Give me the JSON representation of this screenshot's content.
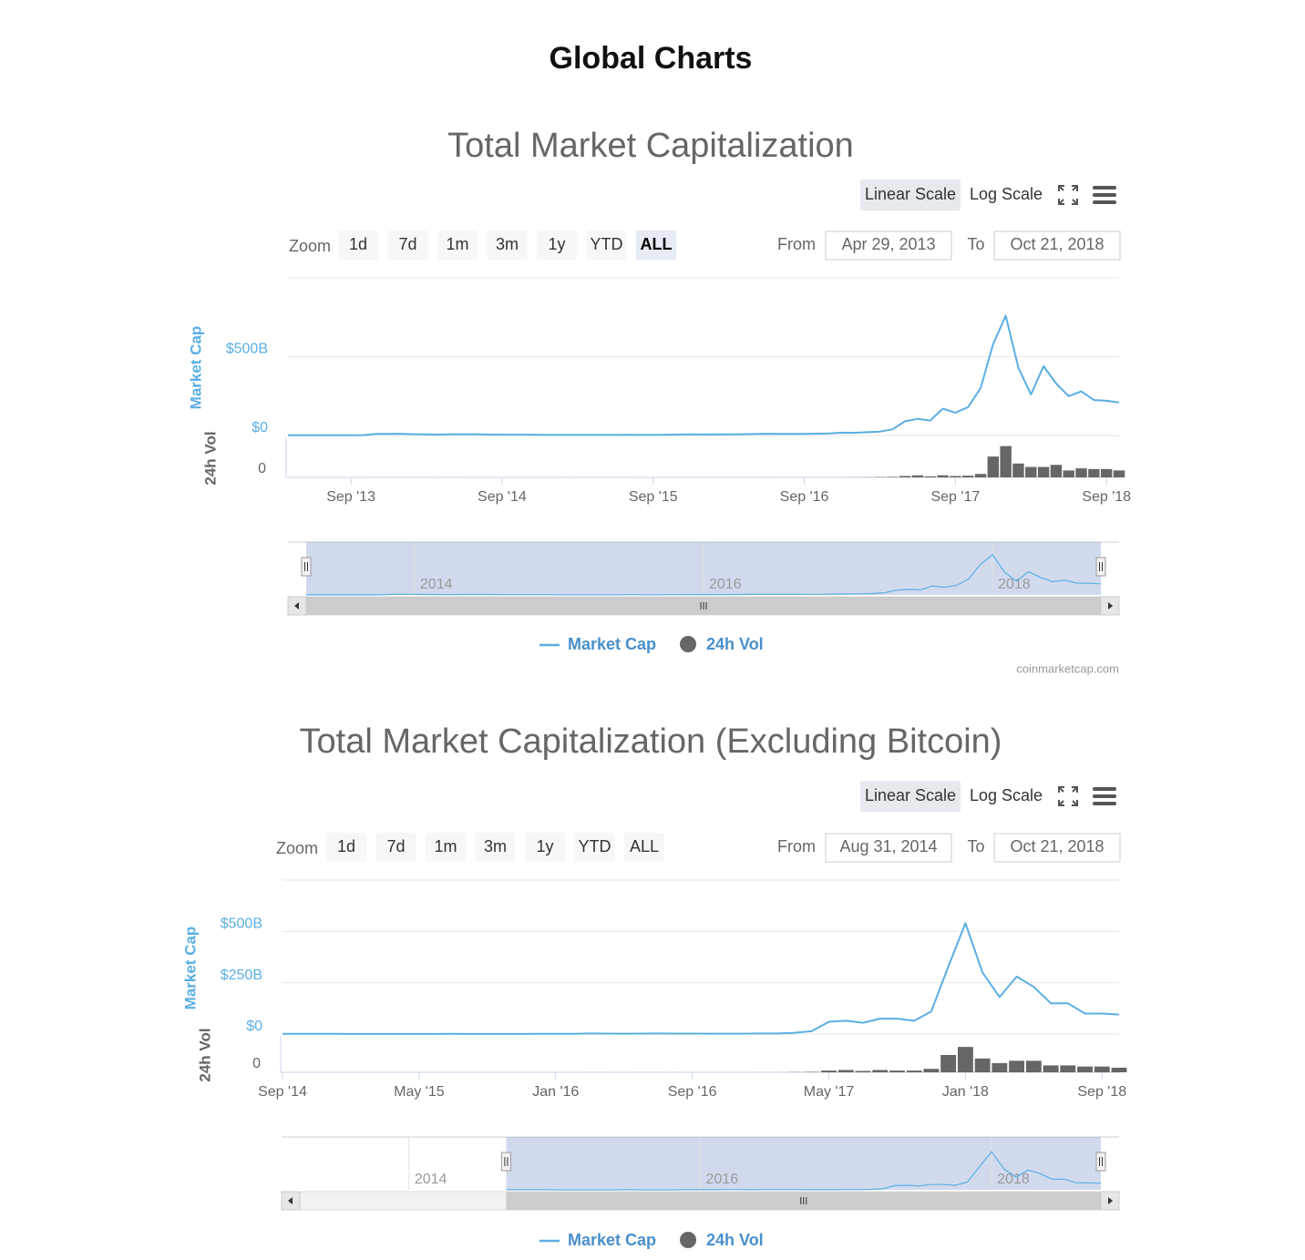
{
  "header": {
    "title": "Global Charts"
  },
  "chart_data": [
    {
      "type": "line",
      "title": "Total Market Capitalization",
      "scale_buttons": [
        "Linear Scale",
        "Log Scale"
      ],
      "active_scale": "Linear Scale",
      "zoom_label": "Zoom",
      "zoom_buttons": [
        "1d",
        "7d",
        "1m",
        "3m",
        "1y",
        "YTD",
        "ALL"
      ],
      "active_zoom": "ALL",
      "from_label": "From",
      "from": "Apr 29, 2013",
      "to_label": "To",
      "to": "Oct 21, 2018",
      "ylabel": "Market Cap",
      "y2label": "24h Vol",
      "x": [
        "2013-04",
        "2013-05",
        "2013-06",
        "2013-07",
        "2013-08",
        "2013-09",
        "2013-10",
        "2013-11",
        "2013-12",
        "2014-01",
        "2014-02",
        "2014-03",
        "2014-04",
        "2014-05",
        "2014-06",
        "2014-07",
        "2014-08",
        "2014-09",
        "2014-10",
        "2014-11",
        "2014-12",
        "2015-01",
        "2015-02",
        "2015-03",
        "2015-04",
        "2015-05",
        "2015-06",
        "2015-07",
        "2015-08",
        "2015-09",
        "2015-10",
        "2015-11",
        "2015-12",
        "2016-01",
        "2016-02",
        "2016-03",
        "2016-04",
        "2016-05",
        "2016-06",
        "2016-07",
        "2016-08",
        "2016-09",
        "2016-10",
        "2016-11",
        "2016-12",
        "2017-01",
        "2017-02",
        "2017-03",
        "2017-04",
        "2017-05",
        "2017-06",
        "2017-07",
        "2017-08",
        "2017-09",
        "2017-10",
        "2017-11",
        "2017-12",
        "2018-01",
        "2018-02",
        "2018-03",
        "2018-04",
        "2018-05",
        "2018-06",
        "2018-07",
        "2018-08",
        "2018-09",
        "2018-10"
      ],
      "xlim": [
        "2013-04",
        "2018-10"
      ],
      "xticks": [
        {
          "value": "2013-09",
          "label": "Sep '13"
        },
        {
          "value": "2014-09",
          "label": "Sep '14"
        },
        {
          "value": "2015-09",
          "label": "Sep '15"
        },
        {
          "value": "2016-09",
          "label": "Sep '16"
        },
        {
          "value": "2017-09",
          "label": "Sep '17"
        },
        {
          "value": "2018-09",
          "label": "Sep '18"
        }
      ],
      "ylim": [
        0,
        1000
      ],
      "yticks": [
        {
          "value": 0,
          "label": "$0"
        },
        {
          "value": 500,
          "label": "$500B"
        }
      ],
      "y2lim": [
        0,
        55
      ],
      "y2ticks": [
        0
      ],
      "grid": true,
      "series": [
        {
          "name": "Market Cap",
          "color": "#5aaee3",
          "values": [
            1.5,
            1.4,
            1.2,
            1.1,
            1.4,
            1.6,
            2.2,
            10,
            10,
            11,
            8,
            7,
            6,
            8,
            8,
            8,
            6,
            5,
            5,
            5,
            4.5,
            3.5,
            3.5,
            3.5,
            3.3,
            3.4,
            3.7,
            4.4,
            3.6,
            3.6,
            4.9,
            5.5,
            7,
            6.5,
            7.5,
            7.6,
            8,
            9.5,
            11,
            10.5,
            10,
            10.5,
            11.5,
            12.5,
            17.7,
            17.5,
            21,
            25,
            39,
            90,
            105,
            95,
            170,
            145,
            180,
            300,
            580,
            760,
            430,
            260,
            440,
            330,
            250,
            280,
            225,
            220,
            210
          ]
        },
        {
          "name": "24h Vol",
          "color": "#666666",
          "axis": "y2",
          "values": [
            0.01,
            0.01,
            0.01,
            0.01,
            0.01,
            0.01,
            0.02,
            0.1,
            0.1,
            0.06,
            0.05,
            0.04,
            0.03,
            0.03,
            0.03,
            0.02,
            0.02,
            0.02,
            0.02,
            0.02,
            0.02,
            0.03,
            0.03,
            0.03,
            0.03,
            0.03,
            0.03,
            0.03,
            0.03,
            0.03,
            0.06,
            0.08,
            0.05,
            0.06,
            0.06,
            0.06,
            0.06,
            0.07,
            0.15,
            0.1,
            0.08,
            0.08,
            0.08,
            0.1,
            0.12,
            0.2,
            0.3,
            0.5,
            0.8,
            2,
            3,
            1.5,
            3,
            2,
            2.5,
            5,
            30,
            45,
            20,
            15,
            15,
            18,
            10,
            13,
            12,
            12,
            10
          ]
        }
      ],
      "navigator": {
        "xlim": [
          "2013-04",
          "2018-10"
        ],
        "xticks": [
          {
            "value": "2014-01",
            "label": "2014"
          },
          {
            "value": "2016-01",
            "label": "2016"
          },
          {
            "value": "2018-01",
            "label": "2018"
          }
        ]
      },
      "credit": "coinmarketcap.com"
    },
    {
      "type": "line",
      "title": "Total Market Capitalization (Excluding Bitcoin)",
      "scale_buttons": [
        "Linear Scale",
        "Log Scale"
      ],
      "active_scale": "Linear Scale",
      "zoom_label": "Zoom",
      "zoom_buttons": [
        "1d",
        "7d",
        "1m",
        "3m",
        "1y",
        "YTD",
        "ALL"
      ],
      "from_label": "From",
      "from": "Aug 31, 2014",
      "to_label": "To",
      "to": "Oct 21, 2018",
      "ylabel": "Market Cap",
      "y2label": "24h Vol",
      "x": [
        "2014-09",
        "2014-10",
        "2014-11",
        "2014-12",
        "2015-01",
        "2015-02",
        "2015-03",
        "2015-04",
        "2015-05",
        "2015-06",
        "2015-07",
        "2015-08",
        "2015-09",
        "2015-10",
        "2015-11",
        "2015-12",
        "2016-01",
        "2016-02",
        "2016-03",
        "2016-04",
        "2016-05",
        "2016-06",
        "2016-07",
        "2016-08",
        "2016-09",
        "2016-10",
        "2016-11",
        "2016-12",
        "2017-01",
        "2017-02",
        "2017-03",
        "2017-04",
        "2017-05",
        "2017-06",
        "2017-07",
        "2017-08",
        "2017-09",
        "2017-10",
        "2017-11",
        "2017-12",
        "2018-01",
        "2018-02",
        "2018-03",
        "2018-04",
        "2018-05",
        "2018-06",
        "2018-07",
        "2018-08",
        "2018-09",
        "2018-10"
      ],
      "xlim": [
        "2014-09",
        "2018-10"
      ],
      "xticks": [
        {
          "value": "2014-09",
          "label": "Sep '14"
        },
        {
          "value": "2015-05",
          "label": "May '15"
        },
        {
          "value": "2016-01",
          "label": "Jan '16"
        },
        {
          "value": "2016-09",
          "label": "Sep '16"
        },
        {
          "value": "2017-05",
          "label": "May '17"
        },
        {
          "value": "2018-01",
          "label": "Jan '18"
        },
        {
          "value": "2018-09",
          "label": "Sep '18"
        }
      ],
      "ylim": [
        0,
        750
      ],
      "yticks": [
        {
          "value": 0,
          "label": "$0"
        },
        {
          "value": 250,
          "label": "$250B"
        },
        {
          "value": 500,
          "label": "$500B"
        }
      ],
      "y2lim": [
        0,
        30
      ],
      "y2ticks": [
        0
      ],
      "grid": true,
      "series": [
        {
          "name": "Market Cap",
          "color": "#5aaee3",
          "values": [
            0.9,
            0.8,
            0.8,
            0.7,
            0.6,
            0.6,
            0.6,
            0.6,
            0.6,
            0.6,
            0.7,
            0.6,
            0.6,
            0.6,
            0.6,
            0.7,
            0.8,
            1.5,
            2.5,
            2,
            1.8,
            2.3,
            2.5,
            2,
            2,
            1.8,
            1.7,
            1.8,
            2.5,
            2.5,
            6,
            14,
            60,
            65,
            55,
            75,
            75,
            65,
            110,
            330,
            540,
            300,
            180,
            280,
            230,
            150,
            150,
            100,
            100,
            95
          ]
        },
        {
          "name": "24h Vol",
          "color": "#666666",
          "axis": "y2",
          "values": [
            0.01,
            0.01,
            0.01,
            0.01,
            0.01,
            0.01,
            0.01,
            0.01,
            0.01,
            0.01,
            0.01,
            0.01,
            0.01,
            0.01,
            0.01,
            0.01,
            0.02,
            0.03,
            0.05,
            0.04,
            0.03,
            0.05,
            0.05,
            0.04,
            0.03,
            0.03,
            0.03,
            0.03,
            0.05,
            0.06,
            0.2,
            0.4,
            1.5,
            2,
            1.2,
            2,
            1.5,
            1.5,
            3,
            15,
            22,
            12,
            8,
            10,
            10,
            6,
            6,
            5,
            5,
            4
          ]
        }
      ],
      "navigator": {
        "xlim": [
          "2013-04",
          "2018-10"
        ],
        "xticks": [
          {
            "value": "2014-01",
            "label": "2014"
          },
          {
            "value": "2016-01",
            "label": "2016"
          },
          {
            "value": "2018-01",
            "label": "2018"
          }
        ]
      }
    }
  ]
}
